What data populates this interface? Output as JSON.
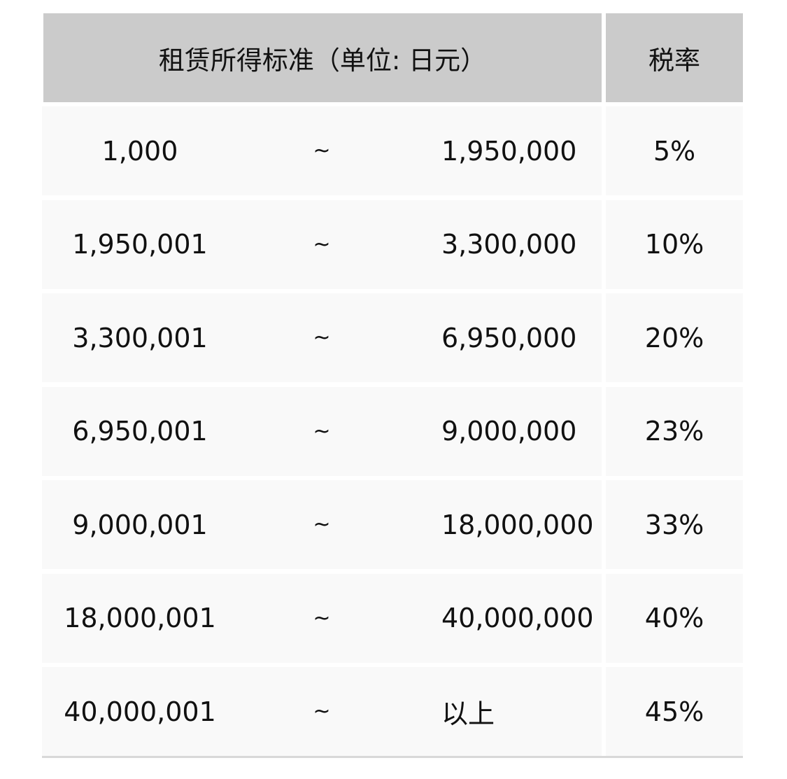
{
  "table": {
    "headers": {
      "range": "租赁所得标准（单位: 日元）",
      "rate": "税率"
    },
    "rows": [
      {
        "from": "1,000",
        "sep": "~",
        "to": "1,950,000",
        "rate": "5%"
      },
      {
        "from": "1,950,001",
        "sep": "~",
        "to": "3,300,000",
        "rate": "10%"
      },
      {
        "from": "3,300,001",
        "sep": "~",
        "to": "6,950,000",
        "rate": "20%"
      },
      {
        "from": "6,950,001",
        "sep": "~",
        "to": "9,000,000",
        "rate": "23%"
      },
      {
        "from": "9,000,001",
        "sep": "~",
        "to": "18,000,000",
        "rate": "33%"
      },
      {
        "from": "18,000,001",
        "sep": "~",
        "to": "40,000,000",
        "rate": "40%"
      },
      {
        "from": "40,000,001",
        "sep": "~",
        "to": "以上",
        "rate": "45%"
      }
    ]
  },
  "colors": {
    "header_bg": "#cbcbcb",
    "cell_bg": "#f9f9f9"
  }
}
